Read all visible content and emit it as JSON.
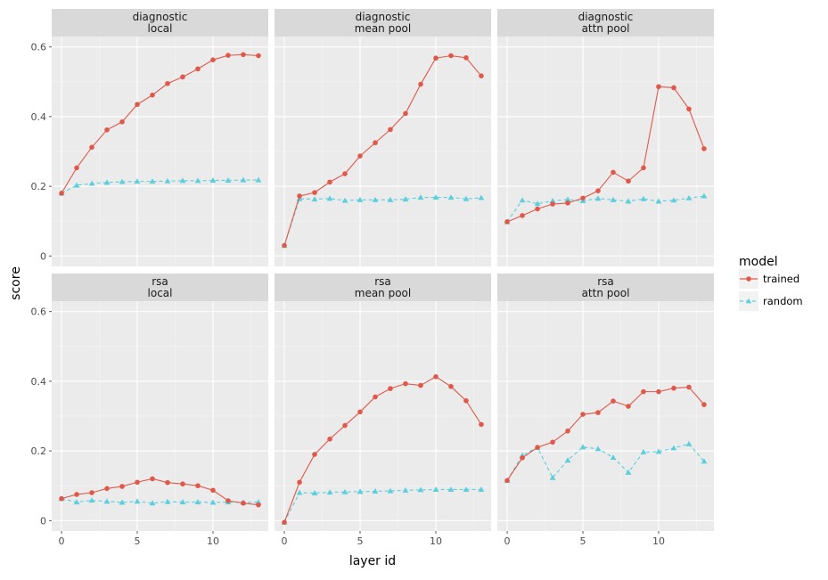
{
  "chart_data": {
    "type": "line",
    "xlabel": "layer id",
    "ylabel": "score",
    "xlim": [
      -0.65,
      13.65
    ],
    "ylim": [
      -0.03,
      0.63
    ],
    "x_ticks": [
      0,
      5,
      10
    ],
    "y_ticks": [
      0,
      0.2,
      0.4,
      0.6
    ],
    "y_tick_labels": [
      "0",
      "0.2",
      "0.4",
      "0.6"
    ],
    "grid": true,
    "legend": {
      "title": "model",
      "position": "right",
      "entries": [
        {
          "name": "trained",
          "color": "#e0584a",
          "marker": "circle",
          "line": "solid"
        },
        {
          "name": "random",
          "color": "#5bcfdc",
          "marker": "triangle",
          "line": "dashed"
        }
      ]
    },
    "x": [
      0,
      1,
      2,
      3,
      4,
      5,
      6,
      7,
      8,
      9,
      10,
      11,
      12,
      13
    ],
    "panels": [
      {
        "row": "diagnostic",
        "col": "local",
        "series": [
          {
            "name": "trained",
            "values": [
              0.18,
              0.253,
              0.312,
              0.362,
              0.385,
              0.435,
              0.462,
              0.495,
              0.514,
              0.537,
              0.563,
              0.576,
              0.578,
              0.575
            ]
          },
          {
            "name": "random",
            "values": [
              0.18,
              0.203,
              0.208,
              0.211,
              0.213,
              0.214,
              0.214,
              0.215,
              0.216,
              0.216,
              0.217,
              0.217,
              0.218,
              0.218
            ]
          }
        ]
      },
      {
        "row": "diagnostic",
        "col": "mean pool",
        "series": [
          {
            "name": "trained",
            "values": [
              0.03,
              0.172,
              0.182,
              0.212,
              0.236,
              0.287,
              0.325,
              0.363,
              0.409,
              0.493,
              0.568,
              0.575,
              0.569,
              0.517
            ]
          },
          {
            "name": "random",
            "values": [
              0.03,
              0.164,
              0.163,
              0.165,
              0.159,
              0.161,
              0.161,
              0.161,
              0.163,
              0.168,
              0.168,
              0.168,
              0.164,
              0.167
            ]
          }
        ]
      },
      {
        "row": "diagnostic",
        "col": "attn pool",
        "series": [
          {
            "name": "trained",
            "values": [
              0.098,
              0.116,
              0.135,
              0.149,
              0.152,
              0.166,
              0.187,
              0.24,
              0.215,
              0.253,
              0.486,
              0.483,
              0.422,
              0.308
            ]
          },
          {
            "name": "random",
            "values": [
              0.098,
              0.16,
              0.15,
              0.158,
              0.162,
              0.158,
              0.165,
              0.161,
              0.157,
              0.164,
              0.157,
              0.16,
              0.166,
              0.172
            ]
          }
        ]
      },
      {
        "row": "rsa",
        "col": "local",
        "series": [
          {
            "name": "trained",
            "values": [
              0.063,
              0.075,
              0.08,
              0.092,
              0.098,
              0.11,
              0.12,
              0.109,
              0.105,
              0.1,
              0.087,
              0.057,
              0.05,
              0.045
            ]
          },
          {
            "name": "random",
            "values": [
              0.063,
              0.053,
              0.058,
              0.055,
              0.052,
              0.055,
              0.05,
              0.054,
              0.053,
              0.053,
              0.052,
              0.053,
              0.052,
              0.053
            ]
          }
        ]
      },
      {
        "row": "rsa",
        "col": "mean pool",
        "series": [
          {
            "name": "trained",
            "values": [
              -0.005,
              0.11,
              0.19,
              0.234,
              0.273,
              0.312,
              0.355,
              0.379,
              0.393,
              0.388,
              0.413,
              0.385,
              0.344,
              0.276
            ]
          },
          {
            "name": "random",
            "values": [
              -0.005,
              0.08,
              0.079,
              0.081,
              0.082,
              0.083,
              0.084,
              0.085,
              0.087,
              0.088,
              0.089,
              0.089,
              0.089,
              0.089
            ]
          }
        ]
      },
      {
        "row": "rsa",
        "col": "attn pool",
        "series": [
          {
            "name": "trained",
            "values": [
              0.115,
              0.18,
              0.21,
              0.225,
              0.257,
              0.305,
              0.31,
              0.343,
              0.328,
              0.37,
              0.37,
              0.38,
              0.383,
              0.333
            ]
          },
          {
            "name": "random",
            "values": [
              0.115,
              0.187,
              0.21,
              0.123,
              0.173,
              0.211,
              0.206,
              0.181,
              0.138,
              0.197,
              0.198,
              0.208,
              0.22,
              0.17
            ]
          }
        ]
      }
    ]
  }
}
